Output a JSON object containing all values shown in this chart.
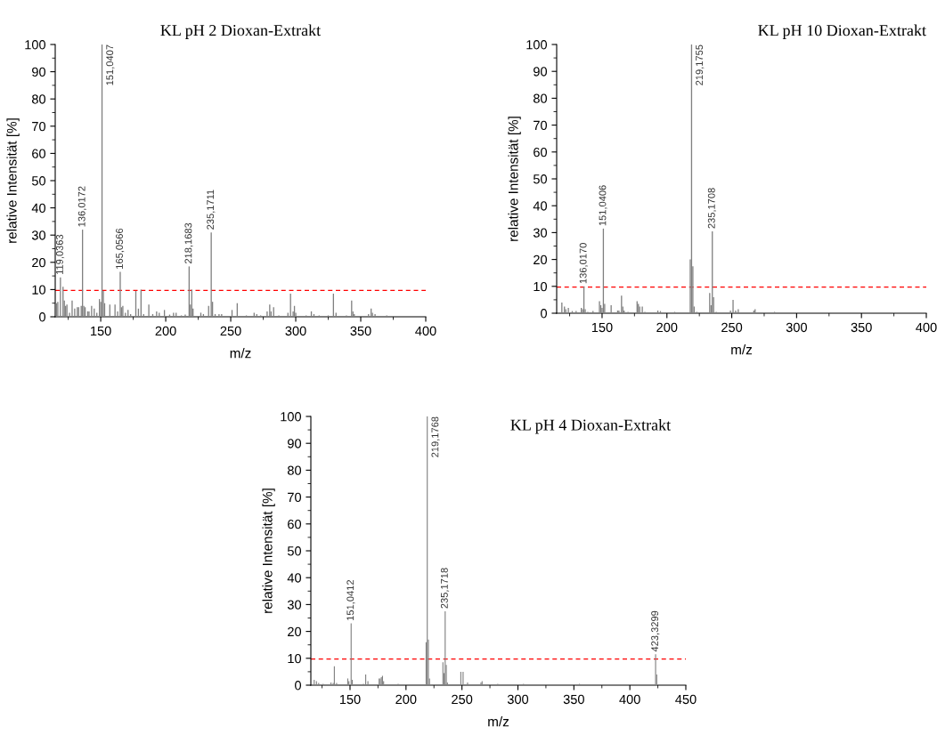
{
  "chart_data": [
    {
      "type": "bar",
      "title": "KL pH 2 Dioxan-Extrakt",
      "xlabel": "m/z",
      "ylabel": "relative Intensität [%]",
      "color": "#808080",
      "x": [
        116,
        117,
        119,
        121,
        122,
        123,
        124,
        126,
        128,
        130,
        132,
        133,
        135,
        136,
        137,
        138,
        140,
        141,
        143,
        145,
        147,
        149,
        150,
        151,
        152,
        153,
        157,
        161,
        163,
        165,
        166,
        167,
        169,
        171,
        173,
        177,
        179,
        181,
        183,
        187,
        190,
        193,
        195,
        199,
        203,
        206,
        208,
        212,
        215,
        218,
        219,
        220,
        221,
        227,
        229,
        233,
        235,
        236,
        238,
        241,
        243,
        251,
        255,
        262,
        268,
        270,
        273,
        278,
        280,
        281,
        283,
        287,
        294,
        296,
        298,
        299,
        300,
        308,
        312,
        314,
        318,
        325,
        329,
        331,
        339,
        343,
        344,
        345,
        356,
        358,
        359,
        361,
        370,
        375
      ],
      "values": [
        5,
        5.5,
        14.5,
        11,
        6,
        4,
        4.5,
        1.5,
        6,
        3,
        3.5,
        3.5,
        4,
        32,
        4,
        3.5,
        2,
        2,
        4,
        3,
        1.5,
        6.5,
        5.5,
        100,
        9.5,
        5,
        4.5,
        4.5,
        2,
        16.5,
        3.5,
        4,
        1.5,
        2.5,
        1,
        9.5,
        3,
        10,
        1,
        4.5,
        1,
        2,
        1.5,
        2.5,
        0.8,
        1.5,
        1.5,
        0.5,
        0.8,
        18.5,
        4.5,
        10,
        3,
        1.5,
        1,
        4,
        31,
        5.5,
        1,
        1,
        1,
        2.5,
        5,
        0.5,
        1.5,
        1,
        0.5,
        2,
        4.5,
        2,
        3.5,
        0.5,
        1.5,
        8.5,
        2,
        4,
        1.5,
        0.5,
        2,
        1,
        0.5,
        0.5,
        8.5,
        1.5,
        0.5,
        6,
        2,
        1,
        1,
        3,
        1.5,
        1,
        0.5,
        0.3
      ],
      "xlim": [
        115,
        400
      ],
      "xticks": [
        150,
        200,
        250,
        300,
        350,
        400
      ],
      "ylim": [
        0,
        100
      ],
      "yticks": [
        0,
        10,
        20,
        30,
        40,
        50,
        60,
        70,
        80,
        90,
        100
      ],
      "ref_lines": [
        {
          "axis": "y",
          "value": 9.7,
          "color": "#ff0000",
          "line_style": "dashed"
        }
      ],
      "annotations": [
        {
          "text": "119,0363",
          "x": 119,
          "y": 14.5
        },
        {
          "text": "136,0172",
          "x": 136,
          "y": 32
        },
        {
          "text": "151,0407",
          "x": 151,
          "y": 100
        },
        {
          "text": "165,0566",
          "x": 165,
          "y": 16.5
        },
        {
          "text": "218,1683",
          "x": 218,
          "y": 18.5
        },
        {
          "text": "235,1711",
          "x": 235,
          "y": 31
        }
      ]
    },
    {
      "type": "bar",
      "title": "KL pH 10 Dioxan-Extrakt",
      "xlabel": "m/z",
      "ylabel": "relative Intensität [%]",
      "color": "#808080",
      "x": [
        119,
        121,
        122,
        124,
        127,
        130,
        134,
        135,
        136,
        137,
        139,
        143,
        148,
        149,
        150,
        151,
        152,
        157,
        162,
        163,
        165,
        166,
        167,
        170,
        177,
        178,
        179,
        181,
        183,
        193,
        195,
        206,
        218,
        219,
        220,
        221,
        223,
        233,
        234,
        235,
        236,
        238,
        249,
        251,
        253,
        255,
        267,
        268,
        283,
        300
      ],
      "values": [
        4,
        2.5,
        1.5,
        2,
        0.8,
        0.8,
        2,
        1.5,
        10,
        1.5,
        0.5,
        0.8,
        4.5,
        3,
        2,
        31.5,
        3.5,
        3,
        1,
        1,
        6.5,
        2.5,
        1,
        0.5,
        4.5,
        3.5,
        2.5,
        2.5,
        0.5,
        1,
        0.8,
        0.5,
        20,
        100,
        17.5,
        2.5,
        0.5,
        7.5,
        3,
        30.5,
        6,
        0.5,
        1,
        5,
        1,
        1.5,
        1,
        1.5,
        0.5,
        0.3
      ],
      "xlim": [
        115,
        400
      ],
      "xticks": [
        150,
        200,
        250,
        300,
        350,
        400
      ],
      "ylim": [
        0,
        100
      ],
      "yticks": [
        0,
        10,
        20,
        30,
        40,
        50,
        60,
        70,
        80,
        90,
        100
      ],
      "ref_lines": [
        {
          "axis": "y",
          "value": 9.7,
          "color": "#ff0000",
          "line_style": "dashed"
        }
      ],
      "annotations": [
        {
          "text": "136,0170",
          "x": 136,
          "y": 10
        },
        {
          "text": "151,0406",
          "x": 151,
          "y": 31.5
        },
        {
          "text": "219,1755",
          "x": 219,
          "y": 100
        },
        {
          "text": "235,1708",
          "x": 235,
          "y": 30.5
        }
      ]
    },
    {
      "type": "bar",
      "title": "KL pH 4 Dioxan-Extrakt",
      "xlabel": "m/z",
      "ylabel": "relative Intensität [%]",
      "color": "#808080",
      "x": [
        118,
        120,
        122,
        126,
        133,
        135,
        136,
        138,
        148,
        149,
        151,
        152,
        162,
        164,
        166,
        176,
        177,
        178,
        179,
        180,
        193,
        205,
        218,
        219,
        220,
        221,
        233,
        234,
        235,
        236,
        237,
        249,
        251,
        255,
        267,
        268,
        282,
        305,
        355,
        423,
        424
      ],
      "values": [
        2,
        1.5,
        0.8,
        0.5,
        1,
        0.8,
        7,
        0.8,
        2.5,
        1.5,
        23,
        2,
        0.5,
        4,
        1.5,
        2.5,
        2.5,
        3,
        3.5,
        1.5,
        0.5,
        0.3,
        16,
        100,
        17,
        2.5,
        8.5,
        4.5,
        27.5,
        7.5,
        1,
        5,
        5,
        1,
        1,
        1.5,
        0.5,
        0.5,
        0.5,
        11.5,
        4
      ],
      "xlim": [
        115,
        450
      ],
      "xticks": [
        150,
        200,
        250,
        300,
        350,
        400,
        450
      ],
      "ylim": [
        0,
        100
      ],
      "yticks": [
        0,
        10,
        20,
        30,
        40,
        50,
        60,
        70,
        80,
        90,
        100
      ],
      "ref_lines": [
        {
          "axis": "y",
          "value": 9.7,
          "color": "#ff0000",
          "line_style": "dashed"
        }
      ],
      "annotations": [
        {
          "text": "151,0412",
          "x": 151,
          "y": 23
        },
        {
          "text": "219,1768",
          "x": 219,
          "y": 100
        },
        {
          "text": "235,1718",
          "x": 235,
          "y": 27.5
        },
        {
          "text": "423,3299",
          "x": 423,
          "y": 11.5
        }
      ]
    }
  ]
}
